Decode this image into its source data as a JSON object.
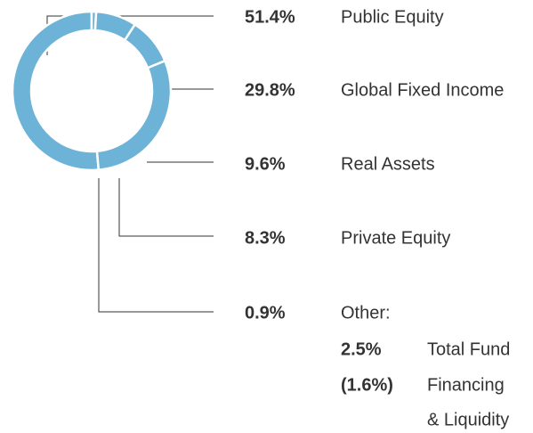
{
  "chart_data": {
    "type": "pie",
    "donut": true,
    "categories": [
      "Public Equity",
      "Global Fixed Income",
      "Real Assets",
      "Private Equity",
      "Other:"
    ],
    "values": [
      51.4,
      29.8,
      9.6,
      8.3,
      0.9
    ],
    "value_labels": [
      "51.4%",
      "29.8%",
      "9.6%",
      "8.3%",
      "0.9%"
    ],
    "color": "#6db3d7",
    "label_color": "#1c6ea8",
    "other_breakdown": [
      {
        "label": "2.5%",
        "name": "Total Fund"
      },
      {
        "label": "(1.6%)",
        "name": "Financing",
        "name_line2": "& Liquidity"
      }
    ]
  }
}
